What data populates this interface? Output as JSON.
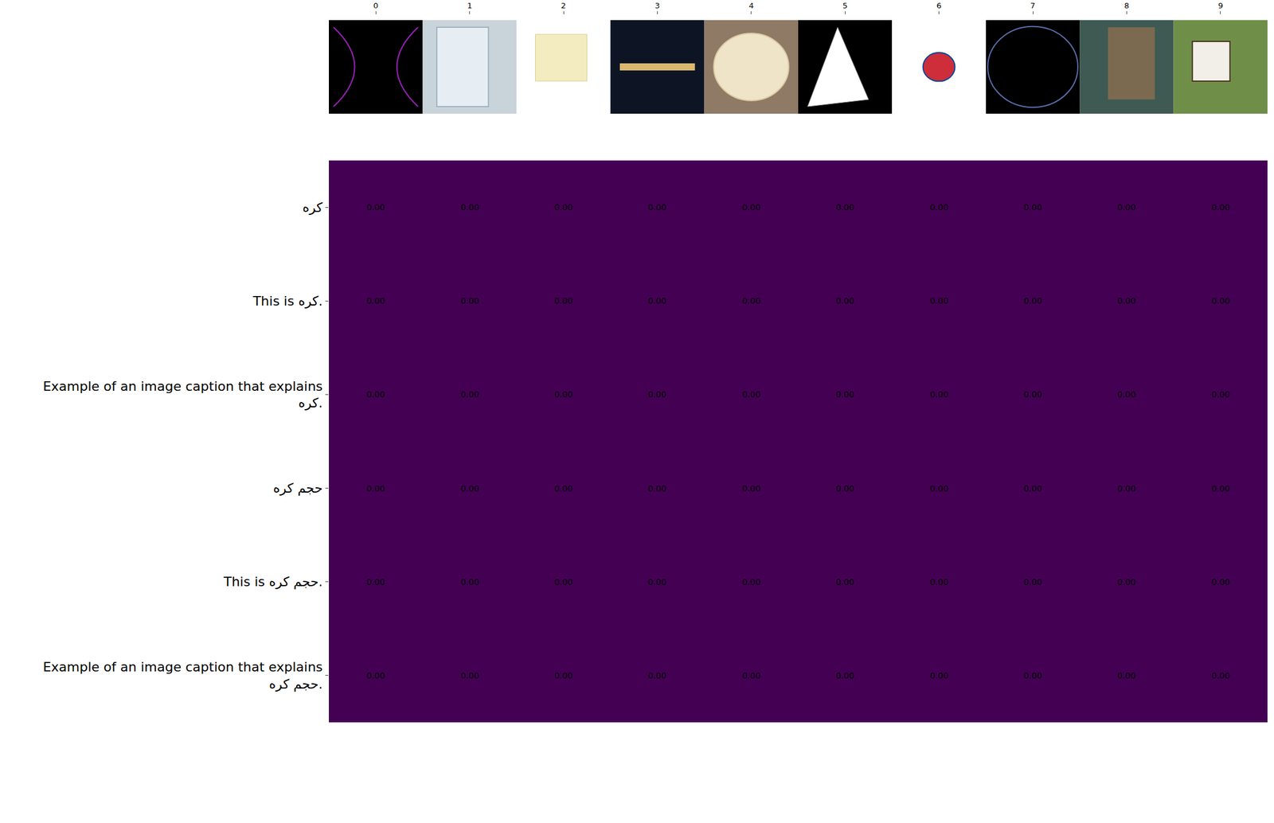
{
  "chart_data": {
    "type": "heatmap",
    "x": [
      0,
      1,
      2,
      3,
      4,
      5,
      6,
      7,
      8,
      9
    ],
    "xticks": [
      0,
      1,
      2,
      3,
      4,
      5,
      6,
      7,
      8,
      9
    ],
    "rows": [
      "کره",
      "This is کره.",
      "Example of an image caption that explains\nکره.",
      "حجم کره",
      "This is حجم کره.",
      "Example of an image caption that explains\nحجم کره."
    ],
    "cells": [
      [
        0,
        0,
        0,
        0,
        0,
        0,
        0,
        0,
        0,
        0
      ],
      [
        0,
        0,
        0,
        0,
        0,
        0,
        0,
        0,
        0,
        0
      ],
      [
        0,
        0,
        0,
        0,
        0,
        0,
        0,
        0,
        0,
        0
      ],
      [
        0,
        0,
        0,
        0,
        0,
        0,
        0,
        0,
        0,
        0
      ],
      [
        0,
        0,
        0,
        0,
        0,
        0,
        0,
        0,
        0,
        0
      ],
      [
        0,
        0,
        0,
        0,
        0,
        0,
        0,
        0,
        0,
        0
      ]
    ],
    "value_labels": [
      [
        "0.00",
        "0.00",
        "0.00",
        "0.00",
        "0.00",
        "0.00",
        "0.00",
        "0.00",
        "0.00",
        "0.00"
      ],
      [
        "0.00",
        "0.00",
        "0.00",
        "0.00",
        "0.00",
        "0.00",
        "0.00",
        "0.00",
        "0.00",
        "0.00"
      ],
      [
        "0.00",
        "0.00",
        "0.00",
        "0.00",
        "0.00",
        "0.00",
        "0.00",
        "0.00",
        "0.00",
        "0.00"
      ],
      [
        "0.00",
        "0.00",
        "0.00",
        "0.00",
        "0.00",
        "0.00",
        "0.00",
        "0.00",
        "0.00",
        "0.00"
      ],
      [
        "0.00",
        "0.00",
        "0.00",
        "0.00",
        "0.00",
        "0.00",
        "0.00",
        "0.00",
        "0.00",
        "0.00"
      ],
      [
        "0.00",
        "0.00",
        "0.00",
        "0.00",
        "0.00",
        "0.00",
        "0.00",
        "0.00",
        "0.00",
        "0.00"
      ]
    ],
    "color": "#440154",
    "data_labels": true
  }
}
